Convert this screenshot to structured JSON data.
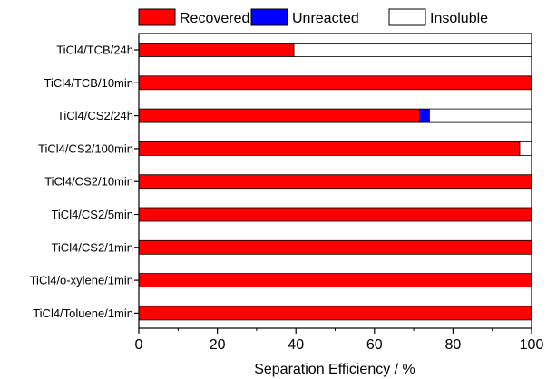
{
  "chart_data": {
    "type": "bar",
    "orientation": "horizontal",
    "stacked": true,
    "title": "",
    "xlabel": "Separation Efficiency / %",
    "ylabel": "",
    "xlim": [
      0,
      100
    ],
    "xticks": [
      "0",
      "20",
      "40",
      "60",
      "80",
      "100"
    ],
    "grid": false,
    "legend_position": "top",
    "categories": [
      "TiCl4/TCB/24h",
      "TiCl4/TCB/10min",
      "TiCl4/CS2/24h",
      "TiCl4/CS2/100min",
      "TiCl4/CS2/10min",
      "TiCl4/CS2/5min",
      "TiCl4/CS2/1min",
      "TiCl4/o-xylene/1min",
      "TiCl4/Toluene/1min"
    ],
    "series": [
      {
        "name": "Recovered",
        "color": "#ff0000",
        "values": [
          39.5,
          100,
          71.5,
          97,
          100,
          100,
          100,
          100,
          100
        ]
      },
      {
        "name": "Unreacted",
        "color": "#0000ff",
        "values": [
          0,
          0,
          2.5,
          0,
          0,
          0,
          0,
          0,
          0
        ]
      },
      {
        "name": "Insoluble",
        "color": "#ffffff",
        "values": [
          60.5,
          0,
          26,
          3,
          0,
          0,
          0,
          0,
          0
        ]
      }
    ]
  }
}
